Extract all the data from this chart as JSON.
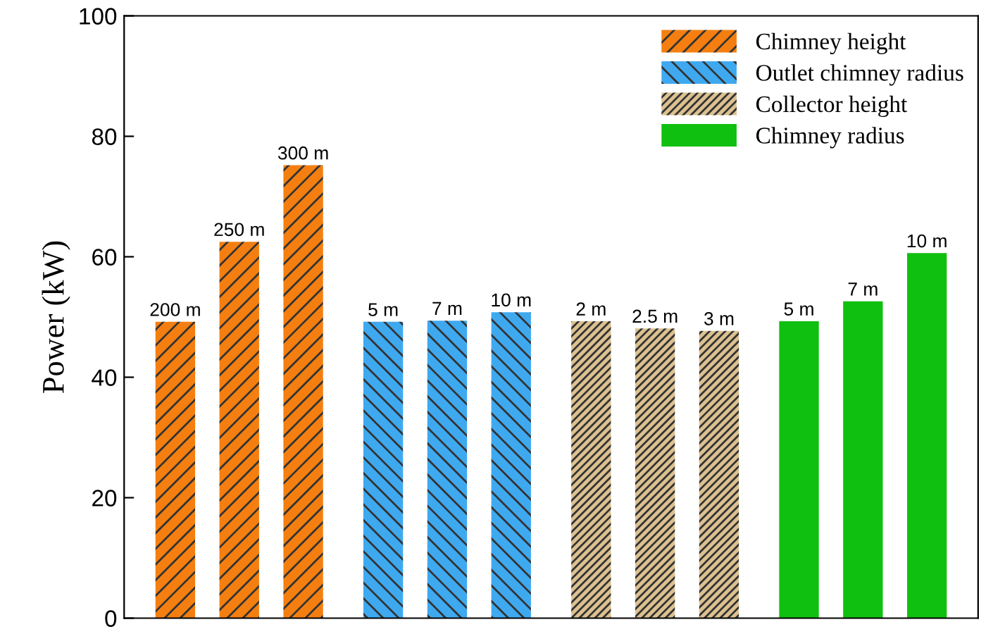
{
  "chart_data": {
    "type": "bar",
    "ylabel": "Power (kW)",
    "categories": [
      "200 m",
      "250 m",
      "300 m",
      "5 m",
      "7 m",
      "10 m",
      "2 m",
      "2.5 m",
      "3 m",
      "5 m",
      "7 m",
      "10 m"
    ],
    "series": [
      {
        "name": "Chimney height",
        "color": "#f47f10",
        "values": [
          49.2,
          62.5,
          75.2,
          null,
          null,
          null,
          null,
          null,
          null,
          null,
          null,
          null
        ]
      },
      {
        "name": "Outlet chimney radius",
        "color": "#3fa9f0",
        "values": [
          null,
          null,
          null,
          49.2,
          49.4,
          50.8,
          null,
          null,
          null,
          null,
          null,
          null
        ]
      },
      {
        "name": "Collector height",
        "color": "#dcc190",
        "values": [
          null,
          null,
          null,
          null,
          null,
          null,
          49.3,
          48.1,
          47.7,
          null,
          null,
          null
        ]
      },
      {
        "name": "Chimney radius",
        "color": "#10c010",
        "values": [
          null,
          null,
          null,
          null,
          null,
          null,
          null,
          null,
          null,
          49.3,
          52.6,
          60.6
        ]
      }
    ],
    "ylim": [
      0,
      100
    ],
    "yticks": [
      0,
      20,
      40,
      60,
      80,
      100
    ],
    "grid": false,
    "legend": "top right"
  }
}
